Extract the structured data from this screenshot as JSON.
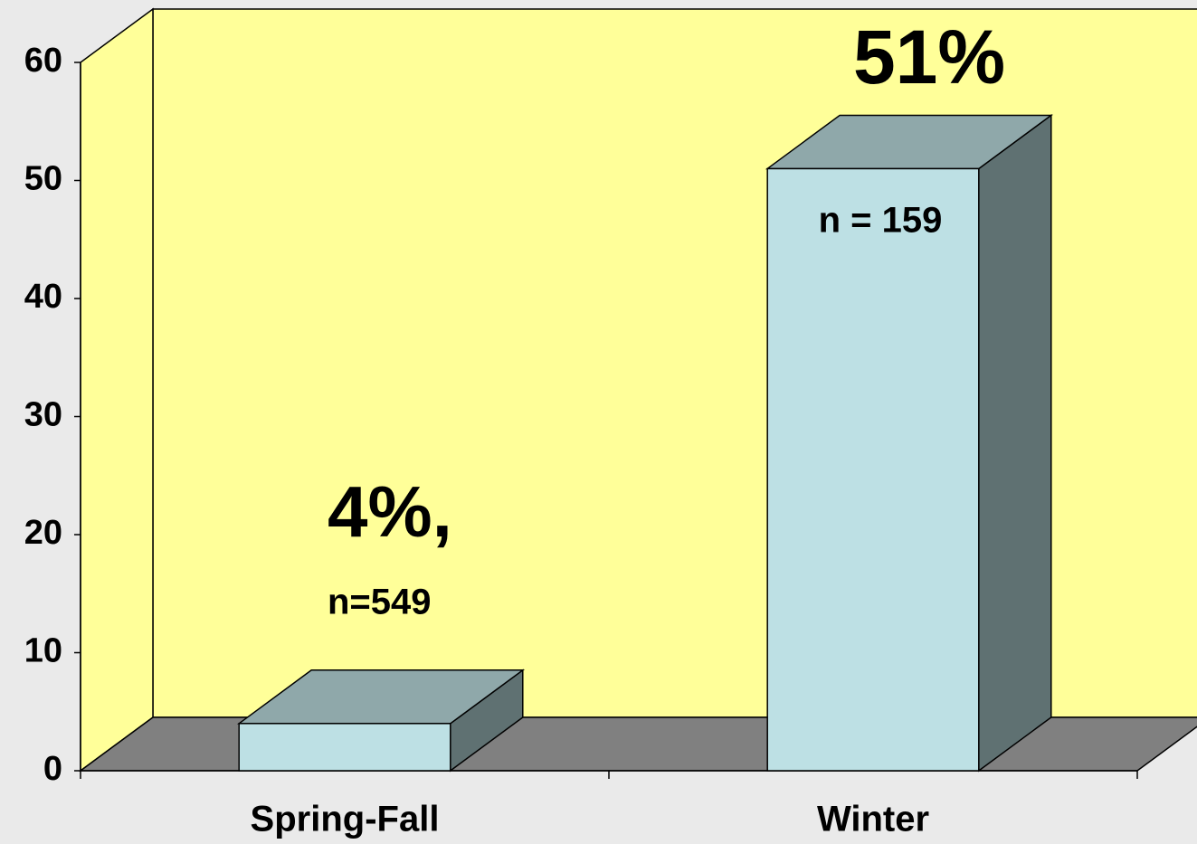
{
  "chart_data": {
    "type": "bar3d",
    "categories": [
      "Spring-Fall",
      "Winter"
    ],
    "values": [
      4,
      51
    ],
    "value_labels": [
      "4%,",
      "51%"
    ],
    "sample_sizes": [
      "n=549",
      "n = 159"
    ],
    "ylim": [
      0,
      60
    ],
    "yticks": [
      0,
      10,
      20,
      30,
      40,
      50,
      60
    ],
    "grid": false,
    "color": "#bde0e4",
    "wall_color": "#ffff99",
    "floor_color": "#808080"
  }
}
